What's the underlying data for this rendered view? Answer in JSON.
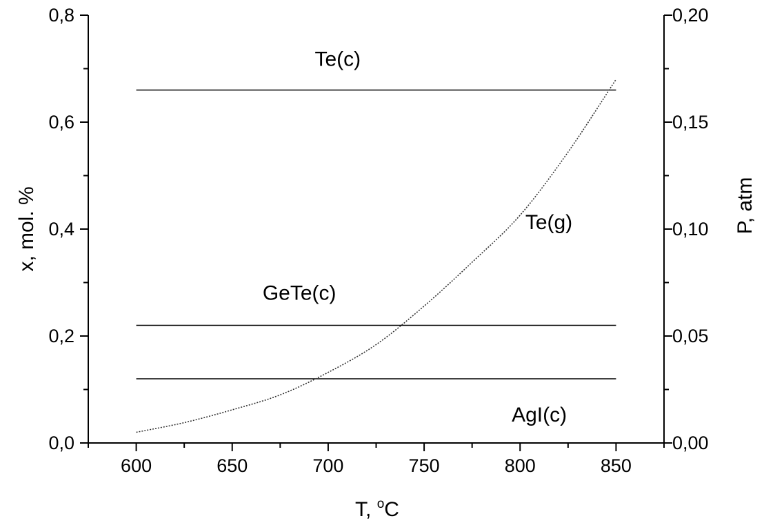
{
  "chart_data": {
    "type": "line",
    "xlabel": "T, °C",
    "xlabel_parts": {
      "main": "T, ",
      "sup": "o",
      "end": "C"
    },
    "ylabel": "x, mol. %",
    "y2label": "P, atm",
    "xlim": [
      575,
      875
    ],
    "ylim": [
      0.0,
      0.8
    ],
    "y2lim": [
      0.0,
      0.2
    ],
    "x_ticks": [
      600,
      650,
      700,
      750,
      800,
      850
    ],
    "x_tick_labels": [
      "600",
      "650",
      "700",
      "750",
      "800",
      "850"
    ],
    "x_minor_step": 25,
    "y_ticks": [
      0.0,
      0.2,
      0.4,
      0.6,
      0.8
    ],
    "y_tick_labels": [
      "0,0",
      "0,2",
      "0,4",
      "0,6",
      "0,8"
    ],
    "y2_ticks": [
      0.0,
      0.05,
      0.1,
      0.15,
      0.2
    ],
    "y2_tick_labels": [
      "0,00",
      "0,05",
      "0,10",
      "0,15",
      "0,20"
    ],
    "grid": false,
    "series": [
      {
        "name": "Te(c)",
        "axis": "left",
        "style": "solid",
        "x": [
          600,
          850
        ],
        "y": [
          0.66,
          0.66
        ],
        "label_at": [
          705,
          0.705
        ]
      },
      {
        "name": "GeTe(c)",
        "axis": "left",
        "style": "solid",
        "x": [
          600,
          850
        ],
        "y": [
          0.22,
          0.22
        ],
        "label_at": [
          685,
          0.268
        ]
      },
      {
        "name": "AgI(c)",
        "axis": "left",
        "style": "solid",
        "x": [
          600,
          850
        ],
        "y": [
          0.12,
          0.12
        ],
        "label_at": [
          810,
          0.04
        ]
      },
      {
        "name": "Te(g)",
        "axis": "right",
        "style": "dotted",
        "x": [
          600,
          625,
          650,
          675,
          700,
          725,
          750,
          775,
          800,
          825,
          850
        ],
        "y": [
          0.005,
          0.0095,
          0.0155,
          0.0225,
          0.033,
          0.046,
          0.064,
          0.0845,
          0.1065,
          0.136,
          0.17
        ],
        "label_at": [
          815,
          0.1
        ]
      }
    ]
  }
}
